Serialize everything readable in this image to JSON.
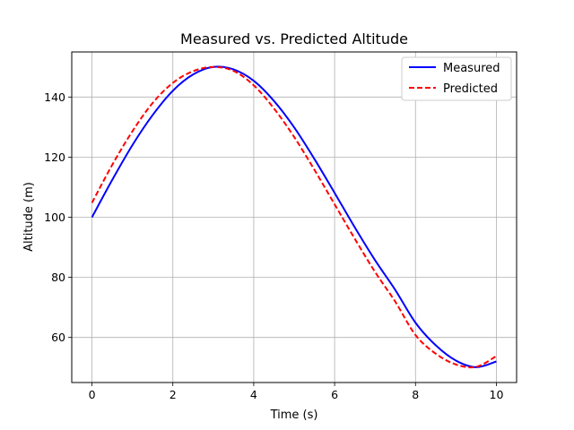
{
  "chart_data": {
    "type": "line",
    "title": "Measured vs. Predicted Altitude",
    "xlabel": "Time (s)",
    "ylabel": "Altitude (m)",
    "xlim": [
      -0.5,
      10.5
    ],
    "ylim": [
      45,
      155
    ],
    "xticks": [
      0,
      2,
      4,
      6,
      8,
      10
    ],
    "yticks": [
      60,
      80,
      100,
      120,
      140
    ],
    "grid": true,
    "legend_position": "top-right",
    "series": [
      {
        "name": "Measured",
        "color": "#0000ff",
        "linestyle": "solid",
        "x": [
          0,
          0.5,
          1,
          1.5,
          2,
          2.5,
          3,
          3.5,
          4,
          4.5,
          5,
          5.5,
          6,
          6.5,
          7,
          7.5,
          8,
          8.5,
          9,
          9.5,
          10
        ],
        "y": [
          100,
          112.4,
          124,
          134,
          142.1,
          147.5,
          150,
          149.2,
          145.4,
          138.7,
          129.9,
          119.4,
          108.1,
          96.6,
          85.7,
          75.8,
          64.9,
          57.4,
          52.3,
          50.1,
          52.0
        ]
      },
      {
        "name": "Predicted",
        "color": "#ff0000",
        "linestyle": "dashed",
        "x": [
          0,
          0.5,
          1,
          1.5,
          2,
          2.5,
          3,
          3.5,
          4,
          4.5,
          5,
          5.5,
          6,
          6.5,
          7,
          7.5,
          8,
          8.5,
          9,
          9.5,
          10
        ],
        "y": [
          104.8,
          117.4,
          128.6,
          138,
          144.7,
          148.6,
          150,
          148.7,
          143.9,
          136.2,
          126.7,
          115.8,
          104.3,
          92.8,
          81.8,
          71.9,
          60.8,
          54.6,
          51.0,
          50.2,
          53.8
        ]
      }
    ]
  }
}
